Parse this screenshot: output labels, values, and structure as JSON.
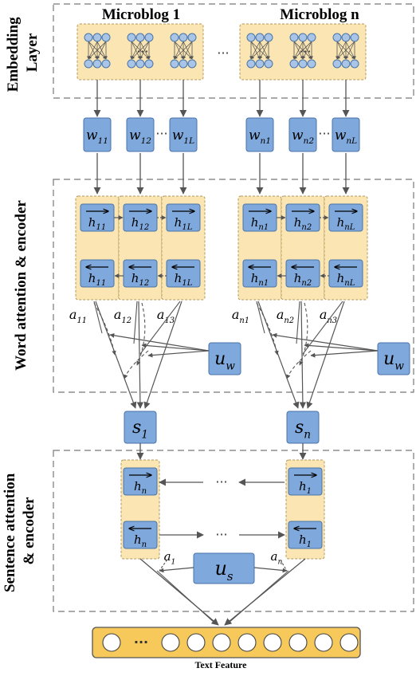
{
  "sections": {
    "embedding": [
      "Embedding",
      "Layer"
    ],
    "word": "Word attention & encoder",
    "sentence": [
      "Sentence attention",
      "& encoder"
    ]
  },
  "titles": {
    "left": "Microblog 1",
    "right": "Microblog n"
  },
  "words": {
    "left": [
      {
        "b": "w",
        "s": "11"
      },
      {
        "b": "w",
        "s": "12"
      },
      {
        "b": "w",
        "s": "1L"
      }
    ],
    "right": [
      {
        "b": "w",
        "s": "n1"
      },
      {
        "b": "w",
        "s": "n2"
      },
      {
        "b": "w",
        "s": "nL"
      }
    ]
  },
  "hidden": {
    "left": [
      "11",
      "12",
      "1L"
    ],
    "right": [
      "n1",
      "n2",
      "nL"
    ]
  },
  "word_attention": {
    "left": [
      {
        "b": "a",
        "s": "11"
      },
      {
        "b": "a",
        "s": "12"
      },
      {
        "b": "a",
        "s": "13"
      }
    ],
    "right": [
      {
        "b": "a",
        "s": "n1"
      },
      {
        "b": "a",
        "s": "n2"
      },
      {
        "b": "a",
        "s": "n3"
      }
    ]
  },
  "context_word": {
    "b": "u",
    "s": "w"
  },
  "sentences": {
    "left": {
      "b": "s",
      "s": "1"
    },
    "right": {
      "b": "s",
      "s": "n"
    }
  },
  "sentence_hidden": {
    "left": "n",
    "right": "1"
  },
  "sentence_attention": {
    "left": {
      "b": "a",
      "s": "1"
    },
    "right": {
      "b": "a",
      "s": "n"
    }
  },
  "context_sentence": {
    "b": "u",
    "s": "s"
  },
  "ellipsis": "···",
  "output_label": "Text Feature",
  "colors": {
    "box_fill": "#7fa9dc",
    "box_stroke": "#4a74a8",
    "panel_fill": "#fbe6b3",
    "panel_stroke": "#b39a5c",
    "arrow": "#555555",
    "section_border": "#777777"
  }
}
